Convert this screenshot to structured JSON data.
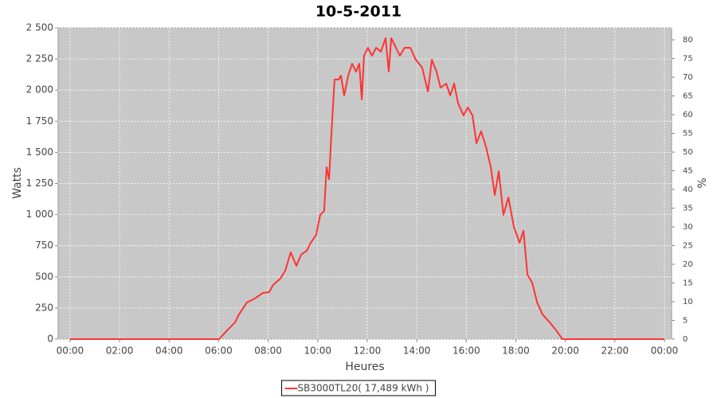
{
  "chart_data": {
    "type": "line",
    "title": "10-5-2011",
    "x_label": "Heures",
    "y_label": "Watts",
    "y2_label": "%",
    "x": [
      0,
      6.02,
      6.34,
      6.66,
      6.82,
      7.14,
      7.46,
      7.79,
      8.04,
      8.2,
      8.49,
      8.69,
      8.91,
      9.14,
      9.33,
      9.56,
      9.72,
      9.94,
      10.1,
      10.26,
      10.36,
      10.46,
      10.55,
      10.68,
      10.84,
      10.94,
      11.07,
      11.23,
      11.39,
      11.55,
      11.68,
      11.78,
      11.87,
      12.03,
      12.19,
      12.36,
      12.55,
      12.74,
      12.87,
      12.97,
      13.16,
      13.32,
      13.51,
      13.74,
      13.96,
      14.22,
      14.45,
      14.61,
      14.8,
      14.96,
      15.19,
      15.35,
      15.51,
      15.67,
      15.89,
      16.06,
      16.25,
      16.41,
      16.6,
      16.8,
      16.99,
      17.15,
      17.31,
      17.5,
      17.7,
      17.92,
      18.15,
      18.31,
      18.47,
      18.66,
      18.86,
      19.08,
      19.37,
      19.63,
      19.88,
      24
    ],
    "series": [
      {
        "name": "SB3000TL20( 17,489 kWh )",
        "color": "#ff3333",
        "values": [
          0,
          0,
          70,
          134,
          198,
          294,
          326,
          371,
          377,
          435,
          486,
          550,
          697,
          588,
          678,
          710,
          774,
          838,
          997,
          1029,
          1381,
          1285,
          1637,
          2084,
          2084,
          2116,
          1957,
          2116,
          2212,
          2148,
          2212,
          1925,
          2276,
          2340,
          2276,
          2340,
          2308,
          2417,
          2148,
          2417,
          2340,
          2276,
          2340,
          2340,
          2244,
          2180,
          1989,
          2244,
          2148,
          2020,
          2052,
          1957,
          2052,
          1893,
          1797,
          1861,
          1797,
          1573,
          1669,
          1541,
          1381,
          1157,
          1349,
          997,
          1138,
          902,
          774,
          870,
          518,
          454,
          294,
          198,
          134,
          70,
          0,
          0
        ]
      }
    ],
    "xlim": [
      -0.48,
      24.29
    ],
    "xticks": [
      {
        "value": 0,
        "label": "00:00"
      },
      {
        "value": 2,
        "label": "02:00"
      },
      {
        "value": 4,
        "label": "04:00"
      },
      {
        "value": 6,
        "label": "06:00"
      },
      {
        "value": 8,
        "label": "08:00"
      },
      {
        "value": 10,
        "label": "10:00"
      },
      {
        "value": 12,
        "label": "12:00"
      },
      {
        "value": 14,
        "label": "14:00"
      },
      {
        "value": 16,
        "label": "16:00"
      },
      {
        "value": 18,
        "label": "18:00"
      },
      {
        "value": 20,
        "label": "20:00"
      },
      {
        "value": 22,
        "label": "22:00"
      },
      {
        "value": 24,
        "label": "00:00"
      }
    ],
    "ylim": [
      0,
      2500
    ],
    "yticks": [
      0,
      250,
      500,
      750,
      {
        "value": 1000,
        "label": "1 000"
      },
      {
        "value": 1250,
        "label": "1 250"
      },
      {
        "value": 1500,
        "label": "1 500"
      },
      {
        "value": 1750,
        "label": "1 750"
      },
      {
        "value": 2000,
        "label": "2 000"
      },
      {
        "value": 2250,
        "label": "2 250"
      },
      {
        "value": 2500,
        "label": "2 500"
      }
    ],
    "y2lim": [
      0,
      83.2
    ],
    "y2ticks": [
      0,
      5,
      10,
      15,
      20,
      25,
      30,
      35,
      40,
      45,
      50,
      55,
      60,
      65,
      70,
      75,
      80
    ],
    "grid": true,
    "legend": "bottom",
    "plot_background": "#c8c8c8"
  }
}
